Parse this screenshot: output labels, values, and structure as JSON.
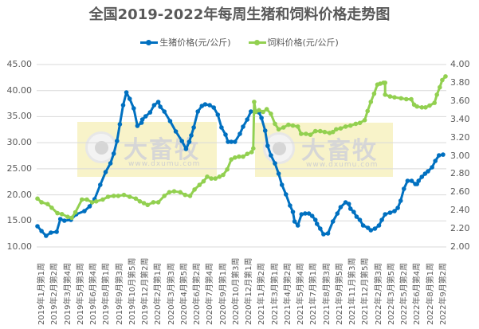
{
  "title": "全国2019-2022年每周生猪和饲料价格走势图",
  "legend": [
    {
      "label": "生猪价格(元/公斤)",
      "color": "#0070C0"
    },
    {
      "label": "饲料价格(元/公斤)",
      "color": "#92D050"
    }
  ],
  "watermark": {
    "name": "大畜牧",
    "url": "www.dxumu.com"
  },
  "chart_data": {
    "type": "line",
    "title": "全国2019-2022年每周生猪和饲料价格走势图",
    "xlabel": "",
    "ylabel_left": "生猪价格(元/公斤)",
    "ylabel_right": "饲料价格(元/公斤)",
    "ylim_left": [
      10,
      45
    ],
    "ylim_right": [
      2.0,
      4.0
    ],
    "yticks_left": [
      "45.00",
      "40.00",
      "35.00",
      "30.00",
      "25.00",
      "20.00",
      "15.00",
      "10.00"
    ],
    "yticks_right": [
      "4.00",
      "3.80",
      "3.60",
      "3.40",
      "3.20",
      "3.00",
      "2.80",
      "2.60",
      "2.40",
      "2.20",
      "2.00"
    ],
    "grid": true,
    "legend_position": "top",
    "categories": [
      "2019年1月第1周",
      "2019年2月第2周",
      "2019年3月第4周",
      "2019年5月第3周",
      "2019年6月第4周",
      "2019年8月第1周",
      "2019年9月第3周",
      "2019年10月第5周",
      "2019年12月第2周",
      "2020年2月第1周",
      "2020年3月第3周",
      "2020年4月第5周",
      "2020年6月第2周",
      "2020年7月第4周",
      "2020年9月第1周",
      "2020年10月第3周",
      "2020年12月第1周",
      "2021年1月第2周",
      "2021年3月第1周",
      "2021年4月第2周",
      "2021年5月第4周",
      "2021年7月第1周",
      "2021年8月第3周",
      "2021年9月第5周",
      "2021年11月第3周",
      "2021年12月第5周",
      "2022年2月第3周",
      "2022年3月第5周",
      "2022年5月第2周",
      "2022年6月第4周",
      "2022年8月第1周",
      "2022年9月第2周"
    ],
    "series": [
      {
        "name": "生猪价格(元/公斤)",
        "axis": "left",
        "color": "#0070C0",
        "x_frac": [
          0,
          0.01,
          0.021,
          0.033,
          0.047,
          0.056,
          0.066,
          0.082,
          0.095,
          0.115,
          0.128,
          0.14,
          0.154,
          0.167,
          0.179,
          0.187,
          0.195,
          0.202,
          0.21,
          0.218,
          0.226,
          0.236,
          0.245,
          0.255,
          0.257,
          0.265,
          0.276,
          0.286,
          0.296,
          0.301,
          0.311,
          0.325,
          0.339,
          0.354,
          0.364,
          0.372,
          0.377,
          0.383,
          0.393,
          0.403,
          0.411,
          0.422,
          0.432,
          0.442,
          0.451,
          0.461,
          0.467,
          0.475,
          0.484,
          0.496,
          0.504,
          0.514,
          0.523,
          0.535,
          0.543,
          0.549,
          0.558,
          0.564,
          0.572,
          0.582,
          0.591,
          0.599,
          0.609,
          0.619,
          0.626,
          0.63,
          0.638,
          0.647,
          0.656,
          0.665,
          0.673,
          0.681,
          0.685,
          0.693,
          0.701,
          0.712,
          0.724,
          0.735,
          0.743,
          0.755,
          0.763,
          0.767,
          0.775,
          0.782,
          0.79,
          0.798,
          0.81,
          0.817,
          0.827,
          0.837,
          0.844,
          0.852,
          0.864,
          0.875,
          0.883,
          0.89,
          0.898,
          0.907,
          0.917,
          0.926,
          0.93,
          0.934,
          0.942,
          0.95,
          0.957,
          0.967,
          0.975,
          0.984,
          0.994,
          1.0
        ],
        "values": [
          13.97,
          13.06,
          12.14,
          12.75,
          12.9,
          15.35,
          15.04,
          15.2,
          16.27,
          16.88,
          17.8,
          19.17,
          21.92,
          24.37,
          26.05,
          27.89,
          30.33,
          33.54,
          37.21,
          39.65,
          38.43,
          36.59,
          33.23,
          33.84,
          34.45,
          35.06,
          35.82,
          37.21,
          37.82,
          36.9,
          35.98,
          34.15,
          32.16,
          30.33,
          28.8,
          30.17,
          31.4,
          32.92,
          35.98,
          37.05,
          37.36,
          37.21,
          36.75,
          35.37,
          32.92,
          31.55,
          30.17,
          30.17,
          30.17,
          31.7,
          33.08,
          34.45,
          35.98,
          35.98,
          35.82,
          34.76,
          32.31,
          29.4,
          27.57,
          26.04,
          24.06,
          21.92,
          20.08,
          17.94,
          16.72,
          14.89,
          14.13,
          16.27,
          16.42,
          16.42,
          15.96,
          15.2,
          14.43,
          13.52,
          12.45,
          12.6,
          14.89,
          16.42,
          17.64,
          18.56,
          18.25,
          17.33,
          16.72,
          15.81,
          15.2,
          14.13,
          13.67,
          13.21,
          13.52,
          14.13,
          15.2,
          16.27,
          16.57,
          16.88,
          17.49,
          18.86,
          21.16,
          22.69,
          22.69,
          22.08,
          22.08,
          22.69,
          23.45,
          24.06,
          24.52,
          25.29,
          26.51,
          27.57,
          27.72
        ]
      },
      {
        "name": "饲料价格(元/公斤)",
        "axis": "right",
        "color": "#92D050",
        "x_frac": [
          0,
          0.01,
          0.025,
          0.035,
          0.049,
          0.06,
          0.074,
          0.084,
          0.093,
          0.109,
          0.121,
          0.134,
          0.144,
          0.16,
          0.173,
          0.187,
          0.198,
          0.212,
          0.226,
          0.241,
          0.251,
          0.261,
          0.27,
          0.284,
          0.296,
          0.311,
          0.323,
          0.335,
          0.35,
          0.362,
          0.374,
          0.385,
          0.397,
          0.407,
          0.416,
          0.426,
          0.436,
          0.446,
          0.455,
          0.465,
          0.475,
          0.484,
          0.494,
          0.504,
          0.514,
          0.525,
          0.529,
          0.531,
          0.535,
          0.543,
          0.553,
          0.562,
          0.572,
          0.582,
          0.591,
          0.603,
          0.615,
          0.626,
          0.638,
          0.646,
          0.658,
          0.669,
          0.681,
          0.693,
          0.704,
          0.716,
          0.724,
          0.732,
          0.743,
          0.755,
          0.767,
          0.78,
          0.79,
          0.802,
          0.809,
          0.817,
          0.825,
          0.833,
          0.84,
          0.848,
          0.852,
          0.852,
          0.864,
          0.875,
          0.891,
          0.904,
          0.916,
          0.923,
          0.93,
          0.942,
          0.951,
          0.961,
          0.973,
          0.979,
          0.986,
          0.992,
          1.0
        ],
        "values": [
          2.53,
          2.49,
          2.47,
          2.43,
          2.37,
          2.36,
          2.33,
          2.32,
          2.38,
          2.52,
          2.52,
          2.49,
          2.5,
          2.52,
          2.55,
          2.56,
          2.56,
          2.57,
          2.55,
          2.53,
          2.5,
          2.48,
          2.46,
          2.49,
          2.49,
          2.56,
          2.6,
          2.61,
          2.6,
          2.57,
          2.56,
          2.63,
          2.68,
          2.72,
          2.77,
          2.75,
          2.75,
          2.77,
          2.79,
          2.85,
          2.96,
          2.98,
          2.99,
          2.99,
          3.02,
          3.04,
          3.08,
          3.59,
          3.48,
          3.5,
          3.48,
          3.51,
          3.46,
          3.35,
          3.29,
          3.31,
          3.34,
          3.33,
          3.32,
          3.24,
          3.24,
          3.23,
          3.27,
          3.27,
          3.26,
          3.25,
          3.26,
          3.29,
          3.3,
          3.32,
          3.33,
          3.35,
          3.36,
          3.39,
          3.49,
          3.59,
          3.68,
          3.78,
          3.79,
          3.8,
          3.8,
          3.67,
          3.65,
          3.64,
          3.63,
          3.62,
          3.62,
          3.56,
          3.54,
          3.53,
          3.53,
          3.55,
          3.58,
          3.67,
          3.75,
          3.83,
          3.87
        ]
      }
    ]
  }
}
